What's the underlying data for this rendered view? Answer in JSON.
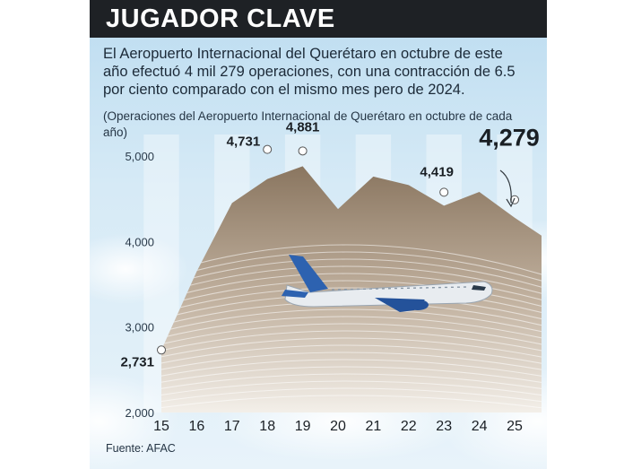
{
  "header": {
    "title": "JUGADOR CLAVE"
  },
  "lead": "El Aeropuerto Internacional del Querétaro en octubre de este año efectuó 4 mil 279 operaciones, con una contracción de 6.5 por ciento comparado con el mismo mes pero de 2024.",
  "note": "(Operaciones del Aeropuerto Internacional de Querétaro en octubre de cada año)",
  "source": "Fuente: AFAC",
  "colors": {
    "background_panel": "#cfe5f3",
    "header_bar": "#1e2125",
    "area_dark": "#8a7660",
    "area_light": "#f3efe9",
    "marker": "#ffffff"
  },
  "chart_data": {
    "type": "area",
    "x": [
      "15",
      "16",
      "17",
      "18",
      "19",
      "20",
      "21",
      "22",
      "23",
      "24",
      "25"
    ],
    "values": [
      2731,
      3650,
      4450,
      4731,
      4881,
      4380,
      4760,
      4660,
      4419,
      4580,
      4279
    ],
    "labeled_points": [
      {
        "x": "15",
        "label": "2,731"
      },
      {
        "x": "18",
        "label": "4,731"
      },
      {
        "x": "19",
        "label": "4,881"
      },
      {
        "x": "23",
        "label": "4,419"
      },
      {
        "x": "25",
        "label": "4,279",
        "emphasis": true
      }
    ],
    "y_ticks": [
      "2,000",
      "3,000",
      "4,000",
      "5,000"
    ],
    "ylim": [
      2000,
      5000
    ],
    "grid": false,
    "title": "",
    "xlabel": "",
    "ylabel": ""
  }
}
